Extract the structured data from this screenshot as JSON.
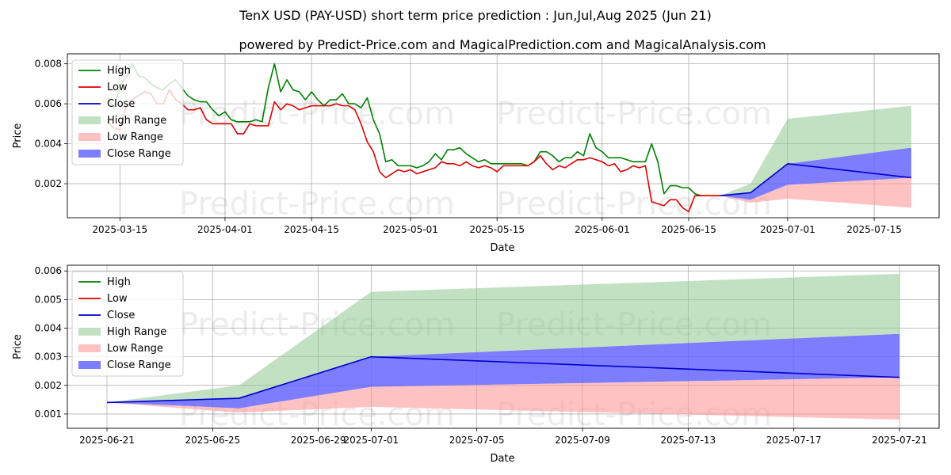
{
  "title": "TenX USD (PAY-USD) short term price prediction : Jun,Jul,Aug 2025 (Jun 21)",
  "subtitle": "powered by Predict-Price.com and MagicalPrediction.com and MagicalAnalysis.com",
  "watermark": "Predict-Price.com",
  "colors": {
    "high": "#008000",
    "low": "#dd0000",
    "close": "#0000cc",
    "high_range": "#8fc98f",
    "low_range": "#ff9a9a",
    "close_range": "#6666ff",
    "grid": "#b0b0b0"
  },
  "chart_data": [
    {
      "type": "line",
      "name": "history-and-forecast",
      "xlabel": "Date",
      "ylabel": "Price",
      "x_ticks": [
        {
          "day": 14,
          "label": "2025-03-15"
        },
        {
          "day": 31,
          "label": "2025-04-01"
        },
        {
          "day": 45,
          "label": "2025-04-15"
        },
        {
          "day": 61,
          "label": "2025-05-01"
        },
        {
          "day": 75,
          "label": "2025-05-15"
        },
        {
          "day": 92,
          "label": "2025-06-01"
        },
        {
          "day": 106,
          "label": "2025-06-15"
        },
        {
          "day": 122,
          "label": "2025-07-01"
        },
        {
          "day": 136,
          "label": "2025-07-15"
        }
      ],
      "y_ticks": [
        {
          "v": 0.002,
          "label": "0.002"
        },
        {
          "v": 0.004,
          "label": "0.004"
        },
        {
          "v": 0.006,
          "label": "0.006"
        },
        {
          "v": 0.008,
          "label": "0.008"
        }
      ],
      "xlim": [
        5.5,
        146.5
      ],
      "ylim": [
        0.0003,
        0.0085
      ],
      "legend": [
        "High",
        "Low",
        "Close",
        "High Range",
        "Low Range",
        "Close Range"
      ],
      "legend_position": "top-left",
      "start_date": "2025-03-01",
      "high": [
        [
          12,
          0.0063
        ],
        [
          13,
          0.0058
        ],
        [
          14,
          0.0069
        ],
        [
          15,
          0.0073
        ],
        [
          16,
          0.008
        ],
        [
          17,
          0.0074
        ],
        [
          18,
          0.0073
        ],
        [
          19,
          0.007
        ],
        [
          20,
          0.0068
        ],
        [
          21,
          0.0067
        ],
        [
          22,
          0.007
        ],
        [
          23,
          0.0072
        ],
        [
          24,
          0.0068
        ],
        [
          25,
          0.0064
        ],
        [
          26,
          0.0062
        ],
        [
          27,
          0.0061
        ],
        [
          28,
          0.0061
        ],
        [
          29,
          0.0057
        ],
        [
          30,
          0.0054
        ],
        [
          31,
          0.0056
        ],
        [
          32,
          0.0052
        ],
        [
          33,
          0.0051
        ],
        [
          34,
          0.0051
        ],
        [
          35,
          0.0051
        ],
        [
          36,
          0.0052
        ],
        [
          37,
          0.0051
        ],
        [
          38,
          0.0068
        ],
        [
          39,
          0.008
        ],
        [
          40,
          0.0066
        ],
        [
          41,
          0.0072
        ],
        [
          42,
          0.0067
        ],
        [
          43,
          0.0066
        ],
        [
          44,
          0.0062
        ],
        [
          45,
          0.0066
        ],
        [
          46,
          0.0062
        ],
        [
          47,
          0.0059
        ],
        [
          48,
          0.0062
        ],
        [
          49,
          0.0062
        ],
        [
          50,
          0.0065
        ],
        [
          51,
          0.006
        ],
        [
          52,
          0.006
        ],
        [
          53,
          0.0058
        ],
        [
          54,
          0.0063
        ],
        [
          55,
          0.0052
        ],
        [
          56,
          0.0045
        ],
        [
          57,
          0.0031
        ],
        [
          58,
          0.0032
        ],
        [
          59,
          0.0029
        ],
        [
          60,
          0.0029
        ],
        [
          61,
          0.0029
        ],
        [
          62,
          0.0028
        ],
        [
          63,
          0.0029
        ],
        [
          64,
          0.0031
        ],
        [
          65,
          0.0035
        ],
        [
          66,
          0.0032
        ],
        [
          67,
          0.0037
        ],
        [
          68,
          0.0037
        ],
        [
          69,
          0.0038
        ],
        [
          70,
          0.0035
        ],
        [
          71,
          0.0033
        ],
        [
          72,
          0.0031
        ],
        [
          73,
          0.0032
        ],
        [
          74,
          0.003
        ],
        [
          75,
          0.003
        ],
        [
          76,
          0.003
        ],
        [
          77,
          0.003
        ],
        [
          78,
          0.003
        ],
        [
          79,
          0.003
        ],
        [
          80,
          0.0029
        ],
        [
          81,
          0.0031
        ],
        [
          82,
          0.0036
        ],
        [
          83,
          0.0036
        ],
        [
          84,
          0.0034
        ],
        [
          85,
          0.0031
        ],
        [
          86,
          0.0033
        ],
        [
          87,
          0.0033
        ],
        [
          88,
          0.0036
        ],
        [
          89,
          0.0034
        ],
        [
          90,
          0.0045
        ],
        [
          91,
          0.0038
        ],
        [
          92,
          0.0036
        ],
        [
          93,
          0.0033
        ],
        [
          94,
          0.0033
        ],
        [
          95,
          0.0033
        ],
        [
          96,
          0.0032
        ],
        [
          97,
          0.0031
        ],
        [
          98,
          0.0031
        ],
        [
          99,
          0.0031
        ],
        [
          100,
          0.004
        ],
        [
          101,
          0.0031
        ],
        [
          102,
          0.0015
        ],
        [
          103,
          0.0019
        ],
        [
          104,
          0.0019
        ],
        [
          105,
          0.0018
        ],
        [
          106,
          0.0018
        ],
        [
          107,
          0.0015
        ],
        [
          108,
          0.0014
        ],
        [
          109,
          0.0014
        ],
        [
          110,
          0.0014
        ],
        [
          111,
          0.0014
        ]
      ],
      "low": [
        [
          12,
          0.0051
        ],
        [
          13,
          0.0048
        ],
        [
          14,
          0.0047
        ],
        [
          15,
          0.0059
        ],
        [
          16,
          0.0062
        ],
        [
          17,
          0.0064
        ],
        [
          18,
          0.0066
        ],
        [
          19,
          0.0065
        ],
        [
          20,
          0.006
        ],
        [
          21,
          0.006
        ],
        [
          22,
          0.0067
        ],
        [
          23,
          0.0062
        ],
        [
          24,
          0.006
        ],
        [
          25,
          0.0057
        ],
        [
          26,
          0.0057
        ],
        [
          27,
          0.0058
        ],
        [
          28,
          0.0052
        ],
        [
          29,
          0.005
        ],
        [
          30,
          0.005
        ],
        [
          31,
          0.005
        ],
        [
          32,
          0.005
        ],
        [
          33,
          0.0045
        ],
        [
          34,
          0.0045
        ],
        [
          35,
          0.005
        ],
        [
          36,
          0.0049
        ],
        [
          37,
          0.0049
        ],
        [
          38,
          0.0049
        ],
        [
          39,
          0.0061
        ],
        [
          40,
          0.0057
        ],
        [
          41,
          0.006
        ],
        [
          42,
          0.0059
        ],
        [
          43,
          0.0057
        ],
        [
          44,
          0.0058
        ],
        [
          45,
          0.0059
        ],
        [
          46,
          0.0059
        ],
        [
          47,
          0.0059
        ],
        [
          48,
          0.0059
        ],
        [
          49,
          0.006
        ],
        [
          50,
          0.0059
        ],
        [
          51,
          0.0059
        ],
        [
          52,
          0.0057
        ],
        [
          53,
          0.005
        ],
        [
          54,
          0.0041
        ],
        [
          55,
          0.0036
        ],
        [
          56,
          0.0026
        ],
        [
          57,
          0.0023
        ],
        [
          58,
          0.0025
        ],
        [
          59,
          0.0027
        ],
        [
          60,
          0.0026
        ],
        [
          61,
          0.0027
        ],
        [
          62,
          0.0025
        ],
        [
          63,
          0.0026
        ],
        [
          64,
          0.0027
        ],
        [
          65,
          0.0028
        ],
        [
          66,
          0.0031
        ],
        [
          67,
          0.003
        ],
        [
          68,
          0.003
        ],
        [
          69,
          0.0029
        ],
        [
          70,
          0.0031
        ],
        [
          71,
          0.0029
        ],
        [
          72,
          0.0028
        ],
        [
          73,
          0.0029
        ],
        [
          74,
          0.0028
        ],
        [
          75,
          0.0026
        ],
        [
          76,
          0.0029
        ],
        [
          77,
          0.0029
        ],
        [
          78,
          0.0029
        ],
        [
          79,
          0.0029
        ],
        [
          80,
          0.0029
        ],
        [
          81,
          0.0031
        ],
        [
          82,
          0.0034
        ],
        [
          83,
          0.003
        ],
        [
          84,
          0.0027
        ],
        [
          85,
          0.0029
        ],
        [
          86,
          0.0028
        ],
        [
          87,
          0.003
        ],
        [
          88,
          0.0032
        ],
        [
          89,
          0.0032
        ],
        [
          90,
          0.0033
        ],
        [
          91,
          0.0032
        ],
        [
          92,
          0.0031
        ],
        [
          93,
          0.0029
        ],
        [
          94,
          0.003
        ],
        [
          95,
          0.0026
        ],
        [
          96,
          0.0027
        ],
        [
          97,
          0.0029
        ],
        [
          98,
          0.0028
        ],
        [
          99,
          0.0029
        ],
        [
          100,
          0.0011
        ],
        [
          101,
          0.001
        ],
        [
          102,
          0.0009
        ],
        [
          103,
          0.0012
        ],
        [
          104,
          0.0012
        ],
        [
          105,
          0.0008
        ],
        [
          106,
          0.0006
        ],
        [
          107,
          0.0014
        ],
        [
          108,
          0.0014
        ],
        [
          109,
          0.0014
        ],
        [
          110,
          0.0014
        ],
        [
          111,
          0.0014
        ]
      ],
      "close": [
        [
          111,
          0.0014
        ],
        [
          116,
          0.00155
        ],
        [
          122,
          0.003
        ],
        [
          142,
          0.0023
        ]
      ],
      "high_range": {
        "x": [
          111,
          116,
          122,
          142
        ],
        "upper": [
          0.0014,
          0.002,
          0.00525,
          0.0059
        ],
        "lower": [
          0.0014,
          0.00155,
          0.003,
          0.0038
        ]
      },
      "close_range": {
        "x": [
          111,
          116,
          122,
          142
        ],
        "upper": [
          0.0014,
          0.00155,
          0.003,
          0.0038
        ],
        "lower": [
          0.0014,
          0.0012,
          0.00195,
          0.0023
        ]
      },
      "low_range": {
        "x": [
          111,
          116,
          122,
          142
        ],
        "upper": [
          0.0014,
          0.0012,
          0.00195,
          0.0023
        ],
        "lower": [
          0.0014,
          0.00105,
          0.00125,
          0.0008
        ]
      }
    },
    {
      "type": "line",
      "name": "forecast-zoom",
      "xlabel": "Date",
      "ylabel": "Price",
      "x_ticks": [
        {
          "day": 0,
          "label": "2025-06-21"
        },
        {
          "day": 4,
          "label": "2025-06-25"
        },
        {
          "day": 8,
          "label": "2025-06-29"
        },
        {
          "day": 10,
          "label": "2025-07-01"
        },
        {
          "day": 14,
          "label": "2025-07-05"
        },
        {
          "day": 18,
          "label": "2025-07-09"
        },
        {
          "day": 22,
          "label": "2025-07-13"
        },
        {
          "day": 26,
          "label": "2025-07-17"
        },
        {
          "day": 30,
          "label": "2025-07-21"
        }
      ],
      "y_ticks": [
        {
          "v": 0.001,
          "label": "0.001"
        },
        {
          "v": 0.002,
          "label": "0.002"
        },
        {
          "v": 0.003,
          "label": "0.003"
        },
        {
          "v": 0.004,
          "label": "0.004"
        },
        {
          "v": 0.005,
          "label": "0.005"
        },
        {
          "v": 0.006,
          "label": "0.006"
        }
      ],
      "xlim": [
        -1.5,
        31.5
      ],
      "ylim": [
        0.0005,
        0.0062
      ],
      "legend": [
        "High",
        "Low",
        "Close",
        "High Range",
        "Low Range",
        "Close Range"
      ],
      "legend_position": "top-left",
      "start_date": "2025-06-21",
      "close": [
        [
          0,
          0.0014
        ],
        [
          5,
          0.00155
        ],
        [
          10,
          0.003
        ],
        [
          30,
          0.00228
        ]
      ],
      "high_range": {
        "x": [
          0,
          5,
          10,
          30
        ],
        "upper": [
          0.0014,
          0.002,
          0.00527,
          0.0059
        ],
        "lower": [
          0.0014,
          0.00155,
          0.003,
          0.0038
        ]
      },
      "close_range": {
        "x": [
          0,
          5,
          10,
          30
        ],
        "upper": [
          0.0014,
          0.00155,
          0.003,
          0.0038
        ],
        "lower": [
          0.0014,
          0.0012,
          0.00195,
          0.00228
        ]
      },
      "low_range": {
        "x": [
          0,
          5,
          10,
          30
        ],
        "upper": [
          0.0014,
          0.0012,
          0.00195,
          0.00228
        ],
        "lower": [
          0.0014,
          0.00105,
          0.00125,
          0.0008
        ]
      }
    }
  ]
}
